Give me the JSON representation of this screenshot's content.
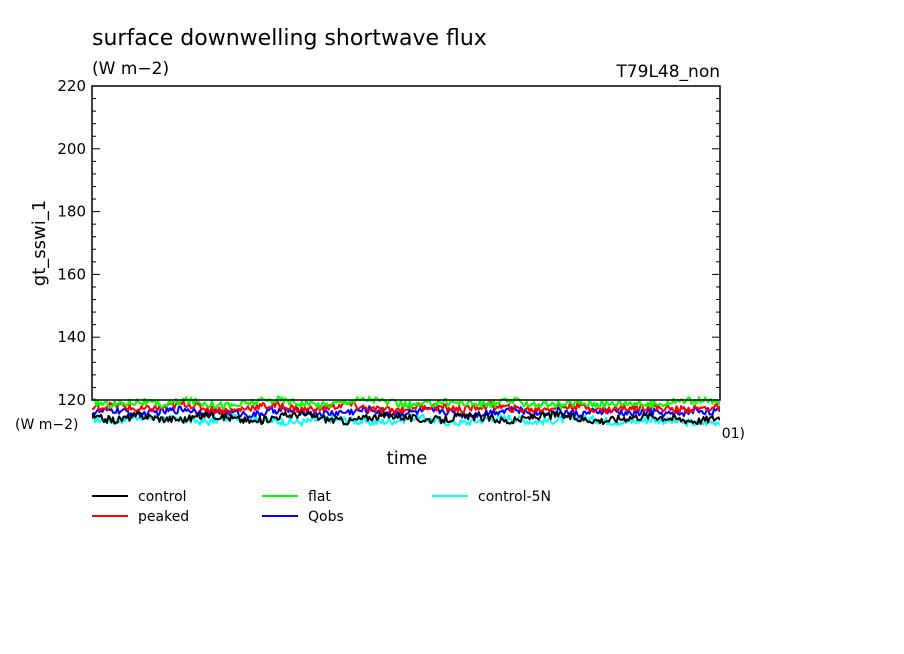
{
  "chart_data": {
    "type": "line",
    "title": "surface downwelling shortwave flux",
    "subtitle": "(W m−2)",
    "experiment": "T79L48_non",
    "ylabel": "gt_sswi_1",
    "xlabel": "time",
    "ylim": [
      120,
      220
    ],
    "yticks": [
      "120",
      "140",
      "160",
      "180",
      "200",
      "220"
    ],
    "y_range_label": "(W m−2)",
    "x_range_label": "01)",
    "grid": false,
    "legend_position": "bottom",
    "series": [
      {
        "name": "control",
        "color": "#000000",
        "y": [
          114.5,
          113.5,
          115.2,
          114.0,
          113.8,
          115.5,
          114.2,
          113.0,
          114.8,
          115.6,
          114.0,
          113.2,
          114.6,
          115.1,
          113.9,
          113.6,
          114.9,
          114.3,
          113.1,
          114.7,
          115.3,
          114.0,
          113.4,
          114.4,
          115.0,
          114.1,
          113.3,
          114.5
        ]
      },
      {
        "name": "peaked",
        "color": "#ff0000",
        "y": [
          117.2,
          118.5,
          116.8,
          117.5,
          118.9,
          117.1,
          116.5,
          117.9,
          118.3,
          116.9,
          117.4,
          118.7,
          117.0,
          116.6,
          118.1,
          117.6,
          116.9,
          118.4,
          117.3,
          116.8,
          117.8,
          118.2,
          116.7,
          117.5,
          118.0,
          116.9,
          117.2,
          117.7
        ]
      },
      {
        "name": "flat",
        "color": "#00ff00",
        "y": [
          119.2,
          118.6,
          119.6,
          118.3,
          119.9,
          118.9,
          118.1,
          119.4,
          120.2,
          119.0,
          118.4,
          119.7,
          120.4,
          118.8,
          118.2,
          119.5,
          119.1,
          118.5,
          119.8,
          118.7,
          118.3,
          119.2,
          118.6,
          119.3,
          118.4,
          119.6,
          119.9,
          119.1
        ]
      },
      {
        "name": "Qobs",
        "color": "#0000ff",
        "y": [
          116.0,
          116.8,
          115.4,
          116.3,
          117.2,
          115.8,
          116.1,
          115.2,
          116.9,
          116.4,
          115.6,
          116.2,
          117.0,
          115.5,
          116.3,
          116.7,
          115.3,
          116.0,
          117.1,
          115.9,
          116.5,
          115.4,
          116.6,
          115.7,
          116.2,
          115.3,
          116.8,
          116.1
        ]
      },
      {
        "name": "control-5N",
        "color": "#00ffff",
        "y": [
          114.0,
          113.3,
          114.8,
          114.2,
          113.5,
          113.0,
          114.6,
          114.0,
          113.2,
          112.9,
          114.1,
          113.6,
          112.8,
          113.4,
          114.5,
          113.1,
          112.7,
          113.9,
          114.3,
          113.0,
          113.6,
          114.2,
          113.4,
          112.9,
          113.8,
          113.2,
          112.6,
          113.1
        ]
      }
    ]
  }
}
